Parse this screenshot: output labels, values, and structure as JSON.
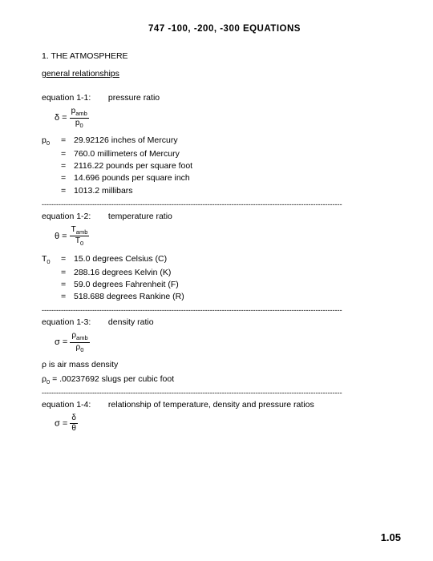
{
  "title": "747  -100,  -200,  -300   EQUATIONS",
  "section": "1.  THE ATMOSPHERE",
  "subhead": "general  relationships",
  "eq1": {
    "label": "equation 1-1:",
    "desc": "pressure ratio",
    "lhs": "δ =",
    "num": "p",
    "num_sub": "amb",
    "den": "p",
    "den_sub": "0"
  },
  "p0_list": {
    "sym": "p",
    "sym_sub": "0",
    "rows": [
      "29.92126 inches of Mercury",
      "760.0 millimeters of Mercury",
      "2116.22 pounds per square foot",
      "14.696 pounds per square inch",
      "1013.2 millibars"
    ]
  },
  "eq2": {
    "label": "equation 1-2:",
    "desc": "temperature ratio",
    "lhs": "θ =",
    "num": "T",
    "num_sub": "amb",
    "den": "T",
    "den_sub": "0"
  },
  "t0_list": {
    "sym": "T",
    "sym_sub": "0",
    "rows": [
      "15.0 degrees Celsius (C)",
      "288.16 degrees Kelvin (K)",
      "59.0 degrees Fahrenheit (F)",
      "518.688 degrees Rankine (R)"
    ]
  },
  "eq3": {
    "label": "equation 1-3:",
    "desc": "density ratio",
    "lhs": "σ =",
    "num": "ρ",
    "num_sub": "amb",
    "den": "ρ",
    "den_sub": "0"
  },
  "note1": "ρ is air mass density",
  "note2_sym": "ρ",
  "note2_sub": "0",
  "note2_rest": " = .00237692 slugs per cubic foot",
  "eq4": {
    "label": "equation 1-4:",
    "desc": "relationship of temperature, density and pressure ratios",
    "lhs": "σ =",
    "num": "δ",
    "den": "θ"
  },
  "divider": "-----------------------------------------------------------------------------------------------------------------------------",
  "pagenum": "1.05"
}
